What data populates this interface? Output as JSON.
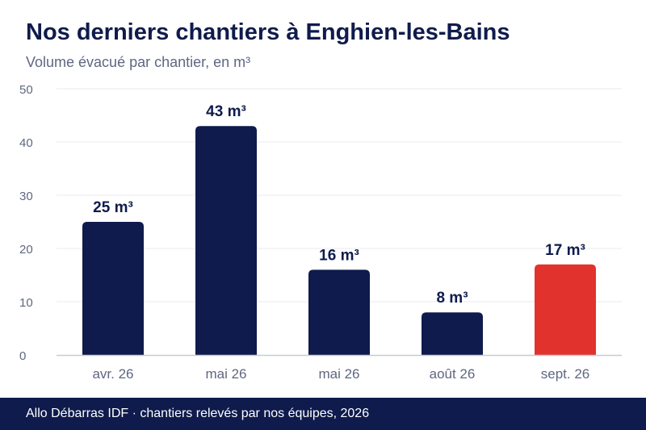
{
  "header": {
    "title": "Nos derniers chantiers à Enghien-les-Bains",
    "subtitle": "Volume évacué par chantier, en m³"
  },
  "chart_data": {
    "type": "bar",
    "title": "Nos derniers chantiers à Enghien-les-Bains",
    "subtitle": "Volume évacué par chantier, en m³",
    "xlabel": "",
    "ylabel": "",
    "ylim": [
      0,
      50
    ],
    "y_ticks": [
      0,
      10,
      20,
      30,
      40,
      50
    ],
    "grid": true,
    "categories": [
      "avr. 26",
      "mai 26",
      "mai 26",
      "août 26",
      "sept. 26"
    ],
    "values": [
      25,
      43,
      16,
      8,
      17
    ],
    "data_labels": [
      "25 m³",
      "43 m³",
      "16 m³",
      "8 m³",
      "17 m³"
    ],
    "bar_colors": [
      "#0f1b4c",
      "#0f1b4c",
      "#0f1b4c",
      "#0f1b4c",
      "#e2322e"
    ]
  },
  "footer": {
    "text": "Allo Débarras IDF · chantiers relevés par nos équipes, 2026"
  },
  "colors": {
    "primary": "#0f1b4c",
    "highlight": "#e2322e",
    "muted_text": "#5f6781",
    "grid": "#e9ebf0"
  }
}
